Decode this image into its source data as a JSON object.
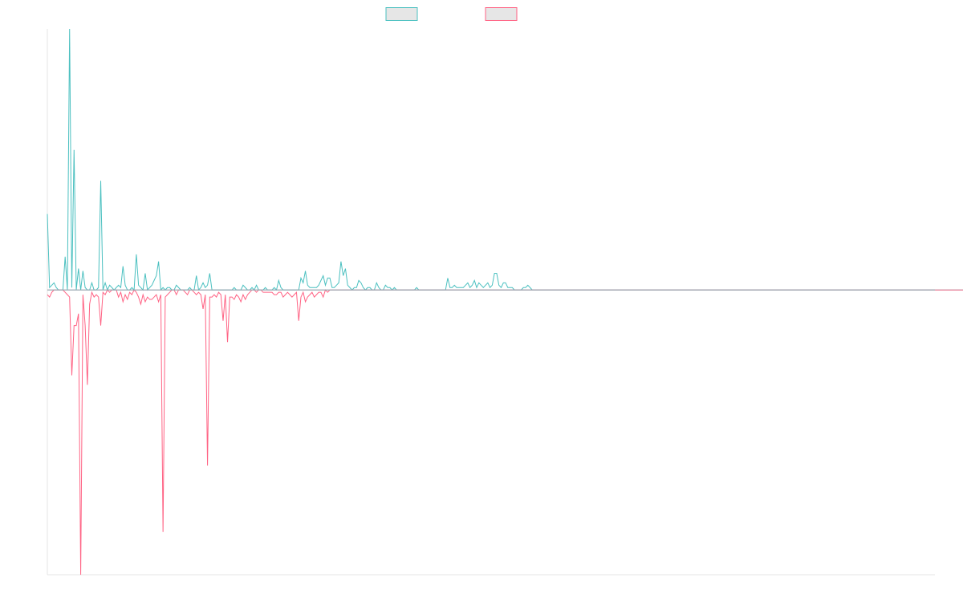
{
  "chart_data": {
    "type": "line",
    "title": "",
    "xlabel": "",
    "ylabel": "",
    "legend_placement": "top-center",
    "grid": false,
    "x_count": 400,
    "ylim": [
      -12,
      11
    ],
    "baseline": 0,
    "series": [
      {
        "color": "#4bc0c0",
        "values": [
          3.2,
          0.1,
          0.2,
          0.3,
          0.1,
          0,
          0,
          0,
          1.4,
          0,
          11,
          0.1,
          5.9,
          0,
          0.9,
          0,
          0.8,
          0.1,
          0,
          0,
          0.3,
          0,
          0,
          0.1,
          4.6,
          0,
          0.3,
          0,
          0.2,
          0.1,
          0,
          0.1,
          0.2,
          0.1,
          1,
          0.2,
          0,
          0,
          0.1,
          0,
          1.5,
          0.2,
          0.1,
          0,
          0.7,
          0,
          0.1,
          0.2,
          0.4,
          0.6,
          1.2,
          0,
          0.1,
          0,
          0.1,
          0.1,
          0,
          0,
          0.2,
          0.1,
          0,
          0,
          0,
          0,
          0.1,
          0,
          0,
          0.6,
          0,
          0.1,
          0.3,
          0.1,
          0.2,
          0.7,
          0,
          0,
          0,
          0,
          0,
          0,
          0,
          0,
          0,
          0,
          0.1,
          0,
          0,
          0,
          0.2,
          0.1,
          0,
          0,
          0.1,
          0,
          0.2,
          0,
          0,
          0,
          0.1,
          0,
          0,
          0,
          0.1,
          0,
          0.4,
          0.1,
          0,
          0,
          0,
          0,
          0,
          0,
          0,
          0,
          0.5,
          0.3,
          0.8,
          0.2,
          0.1,
          0.1,
          0.1,
          0.1,
          0.2,
          0.4,
          0.6,
          0.2,
          0.5,
          0.5,
          0.1,
          0.1,
          0.2,
          0.3,
          1.2,
          0.6,
          0.9,
          0.2,
          0.1,
          0,
          0.1,
          0.1,
          0.4,
          0.3,
          0.1,
          0,
          0.1,
          0.1,
          0,
          0,
          0.3,
          0.1,
          0,
          0,
          0.2,
          0.1,
          0.1,
          0,
          0.1,
          0,
          0,
          0,
          0,
          0,
          0,
          0,
          0,
          0,
          0.1,
          0,
          0,
          0,
          0,
          0,
          0,
          0,
          0,
          0,
          0,
          0,
          0,
          0,
          0.5,
          0.1,
          0.1,
          0.2,
          0.1,
          0.1,
          0.1,
          0.1,
          0.2,
          0.3,
          0.1,
          0.2,
          0.4,
          0.1,
          0.3,
          0.2,
          0.1,
          0.2,
          0.3,
          0.1,
          0.2,
          0.7,
          0.7,
          0.2,
          0.1,
          0.3,
          0.3,
          0.1,
          0.1,
          0.1,
          0,
          0,
          0,
          0,
          0.1,
          0.1,
          0.2,
          0.1,
          0,
          0,
          0,
          0,
          0,
          0,
          0,
          0,
          0,
          0,
          0,
          0,
          0,
          0,
          0,
          0,
          0,
          0,
          0,
          0,
          0,
          0,
          0,
          0,
          0,
          0,
          0,
          0,
          0,
          0,
          0,
          0,
          0,
          0,
          0,
          0,
          0,
          0,
          0,
          0,
          0,
          0,
          0,
          0,
          0,
          0,
          0,
          0,
          0,
          0,
          0,
          0,
          0,
          0,
          0,
          0,
          0,
          0,
          0,
          0,
          0,
          0,
          0,
          0,
          0,
          0,
          0,
          0,
          0,
          0,
          0,
          0,
          0,
          0,
          0,
          0,
          0,
          0,
          0,
          0,
          0,
          0,
          0,
          0,
          0,
          0,
          0,
          0,
          0,
          0,
          0,
          0,
          0,
          0,
          0,
          0,
          0,
          0,
          0,
          0,
          0,
          0,
          0,
          0,
          0,
          0,
          0,
          0,
          0,
          0,
          0,
          0,
          0,
          0,
          0,
          0,
          0,
          0,
          0,
          0,
          0,
          0,
          0,
          0,
          0,
          0,
          0,
          0,
          0,
          0,
          0,
          0,
          0,
          0,
          0,
          0,
          0,
          0,
          0,
          0,
          0,
          0,
          0,
          0,
          0,
          0,
          0,
          0,
          0,
          0,
          0,
          0,
          0,
          0,
          0,
          0,
          0,
          0,
          0,
          0,
          0,
          0,
          0,
          0,
          0,
          0,
          0,
          0,
          0,
          0,
          0,
          0,
          0,
          0,
          0,
          0,
          0,
          0,
          0,
          0,
          0,
          0,
          0,
          0,
          0,
          0,
          0,
          0,
          0,
          0,
          0,
          0,
          0,
          0,
          0,
          0,
          0,
          0,
          0,
          0,
          0,
          0,
          0,
          0,
          0,
          0,
          0,
          0,
          0,
          0,
          0
        ]
      },
      {
        "color": "#ff6384",
        "values": [
          -0.2,
          -0.3,
          -0.1,
          0,
          0,
          0,
          0,
          0,
          -0.1,
          -0.2,
          -0.3,
          -3.6,
          -1.5,
          -1.5,
          -1,
          -12,
          -0.2,
          -1.5,
          -4,
          -0.6,
          -0.1,
          -0.3,
          -0.2,
          -0.3,
          -1.5,
          -0.1,
          -0.2,
          0,
          -0.1,
          0,
          0,
          0,
          -0.3,
          -0.1,
          -0.5,
          -0.2,
          -0.4,
          -0.1,
          -0.2,
          0,
          -0.1,
          -0.3,
          -0.6,
          -0.2,
          -0.5,
          -0.3,
          -0.4,
          -0.4,
          -0.3,
          -0.2,
          -0.5,
          -0.2,
          -10.2,
          -0.3,
          -0.2,
          -0.1,
          0,
          0,
          -0.2,
          0,
          0,
          0,
          -0.1,
          -0.2,
          0,
          0,
          -0.1,
          -0.2,
          -0.1,
          -0.2,
          -0.8,
          -0.2,
          -7.4,
          -0.3,
          -0.3,
          -0.2,
          -0.3,
          -0.1,
          -0.2,
          -1.3,
          -0.2,
          -2.2,
          -0.3,
          -0.3,
          -0.4,
          -0.2,
          -0.3,
          -0.5,
          -0.2,
          -0.4,
          -0.2,
          -0.1,
          0,
          0,
          -0.1,
          0,
          0,
          -0.1,
          -0.1,
          -0.1,
          -0.1,
          -0.1,
          -0.2,
          -0.2,
          -0.1,
          -0.1,
          -0.3,
          -0.2,
          -0.1,
          -0.2,
          -0.3,
          -0.2,
          -0.1,
          -1.3,
          -0.3,
          -0.1,
          -0.5,
          -0.3,
          -0.2,
          -0.1,
          -0.3,
          -0.2,
          -0.1,
          -0.1,
          -0.3,
          0,
          -0.1,
          0,
          0,
          0,
          0,
          0,
          0,
          0,
          0,
          0,
          0,
          0,
          0,
          0,
          0,
          0,
          0,
          0,
          0,
          0,
          0,
          0,
          0,
          0,
          0,
          0,
          0,
          0,
          0,
          0,
          0,
          0,
          0,
          0,
          0,
          0,
          0,
          0,
          0,
          0,
          0,
          0,
          0,
          0,
          0,
          0,
          0,
          0,
          0,
          0,
          0,
          0,
          0,
          0,
          0,
          0,
          0,
          0,
          0,
          0,
          0,
          0,
          0,
          0,
          0,
          0,
          0,
          0,
          0,
          0,
          0,
          0,
          0,
          0,
          0,
          0,
          0,
          0,
          0,
          0,
          0,
          0,
          0,
          0,
          0,
          0,
          0,
          0,
          0,
          0,
          0,
          0,
          0,
          0,
          0,
          0,
          0,
          0,
          0,
          0,
          0,
          0,
          0,
          0,
          0,
          0,
          0,
          0,
          0,
          0,
          0,
          0,
          0,
          0,
          0,
          0,
          0,
          0,
          0,
          0,
          0,
          0,
          0,
          0,
          0,
          0,
          0,
          0,
          0,
          0,
          0,
          0,
          0,
          0,
          0,
          0,
          0,
          0,
          0,
          0,
          0,
          0,
          0,
          0,
          0,
          0,
          0,
          0,
          0,
          0,
          0,
          0,
          0,
          0,
          0,
          0,
          0,
          0,
          0,
          0,
          0,
          0,
          0,
          0,
          0,
          0,
          0,
          0,
          0,
          0,
          0,
          0,
          0,
          0,
          0,
          0,
          0,
          0,
          0,
          0,
          0,
          0,
          0,
          0,
          0,
          0,
          0,
          0,
          0,
          0,
          0,
          0,
          0,
          0,
          0,
          0,
          0,
          0,
          0,
          0,
          0,
          0,
          0,
          0,
          0,
          0,
          0,
          0,
          0,
          0,
          0,
          0,
          0,
          0,
          0,
          0,
          0,
          0,
          0,
          0,
          0,
          0,
          0,
          0,
          0,
          0,
          0,
          0,
          0,
          0,
          0,
          0,
          0,
          0,
          0,
          0,
          0,
          0,
          0,
          0,
          0,
          0,
          0,
          0,
          0,
          0,
          0,
          0,
          0,
          0,
          0,
          0,
          0,
          0,
          0,
          0,
          0,
          0,
          0,
          0,
          0,
          0,
          0,
          0,
          0,
          0,
          0,
          0,
          0,
          0,
          0,
          0,
          0,
          0,
          0,
          0,
          0,
          0,
          0,
          0,
          0,
          0,
          0,
          0,
          0,
          0,
          0,
          0,
          0,
          0,
          0,
          0,
          0,
          0,
          0,
          0,
          0,
          0,
          0,
          0,
          0,
          0,
          0,
          0
        ]
      }
    ]
  }
}
